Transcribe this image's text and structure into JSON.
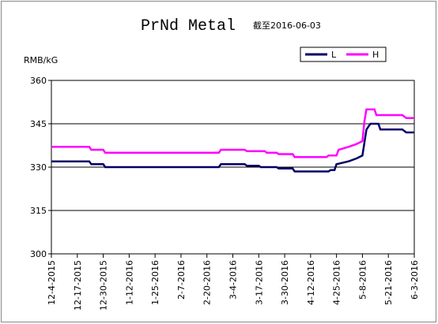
{
  "chart_data": {
    "type": "line",
    "title": "PrNd Metal",
    "subtitle": "截至2016-06-03",
    "y_label": "RMB/kG",
    "ylim": [
      300,
      360
    ],
    "yticks": [
      300,
      315,
      330,
      345,
      360
    ],
    "grid": true,
    "xlim": [
      "12-4-2015",
      "6-3-2016"
    ],
    "xticks": [
      "12-4-2015",
      "12-17-2015",
      "12-30-2015",
      "1-12-2016",
      "1-25-2016",
      "2-7-2016",
      "2-20-2016",
      "3-4-2016",
      "3-17-2016",
      "3-30-2016",
      "4-12-2016",
      "4-25-2016",
      "5-8-2016",
      "5-21-2016",
      "6-3-2016"
    ],
    "series": [
      {
        "name": "L",
        "color": "#000066",
        "x": [
          "12-4-2015",
          "12-23-2015",
          "12-24-2015",
          "12-30-2015",
          "12-31-2015",
          "2-26-2016",
          "2-27-2016",
          "3-10-2016",
          "3-11-2016",
          "3-17-2016",
          "3-18-2016",
          "3-26-2016",
          "3-27-2016",
          "4-3-2016",
          "4-4-2016",
          "4-21-2016",
          "4-22-2016",
          "4-24-2016",
          "4-25-2016",
          "5-1-2016",
          "5-5-2016",
          "5-8-2016",
          "5-10-2016",
          "5-12-2016",
          "5-16-2016",
          "5-17-2016",
          "5-28-2016",
          "5-30-2016",
          "6-3-2016"
        ],
        "values": [
          332,
          332,
          331,
          331,
          330,
          330,
          331,
          331,
          330.5,
          330.5,
          330,
          330,
          329.5,
          329.5,
          328.5,
          328.5,
          329,
          329,
          331,
          332,
          333,
          334,
          343,
          345,
          345,
          343,
          343,
          342,
          342
        ]
      },
      {
        "name": "H",
        "color": "#ff00ff",
        "x": [
          "12-4-2015",
          "12-23-2015",
          "12-24-2015",
          "12-30-2015",
          "12-31-2015",
          "2-26-2016",
          "2-27-2016",
          "3-10-2016",
          "3-11-2016",
          "3-20-2016",
          "3-21-2016",
          "3-26-2016",
          "3-27-2016",
          "4-3-2016",
          "4-4-2016",
          "4-20-2016",
          "4-21-2016",
          "4-25-2016",
          "4-26-2016",
          "5-1-2016",
          "5-5-2016",
          "5-8-2016",
          "5-9-2016",
          "5-10-2016",
          "5-14-2016",
          "5-15-2016",
          "5-28-2016",
          "5-30-2016",
          "6-3-2016"
        ],
        "values": [
          337,
          337,
          336,
          336,
          335,
          335,
          336,
          336,
          335.5,
          335.5,
          335,
          335,
          334.5,
          334.5,
          333.5,
          333.5,
          334,
          334,
          336,
          337,
          338,
          339,
          346,
          350,
          350,
          348,
          348,
          347,
          347
        ]
      }
    ]
  }
}
